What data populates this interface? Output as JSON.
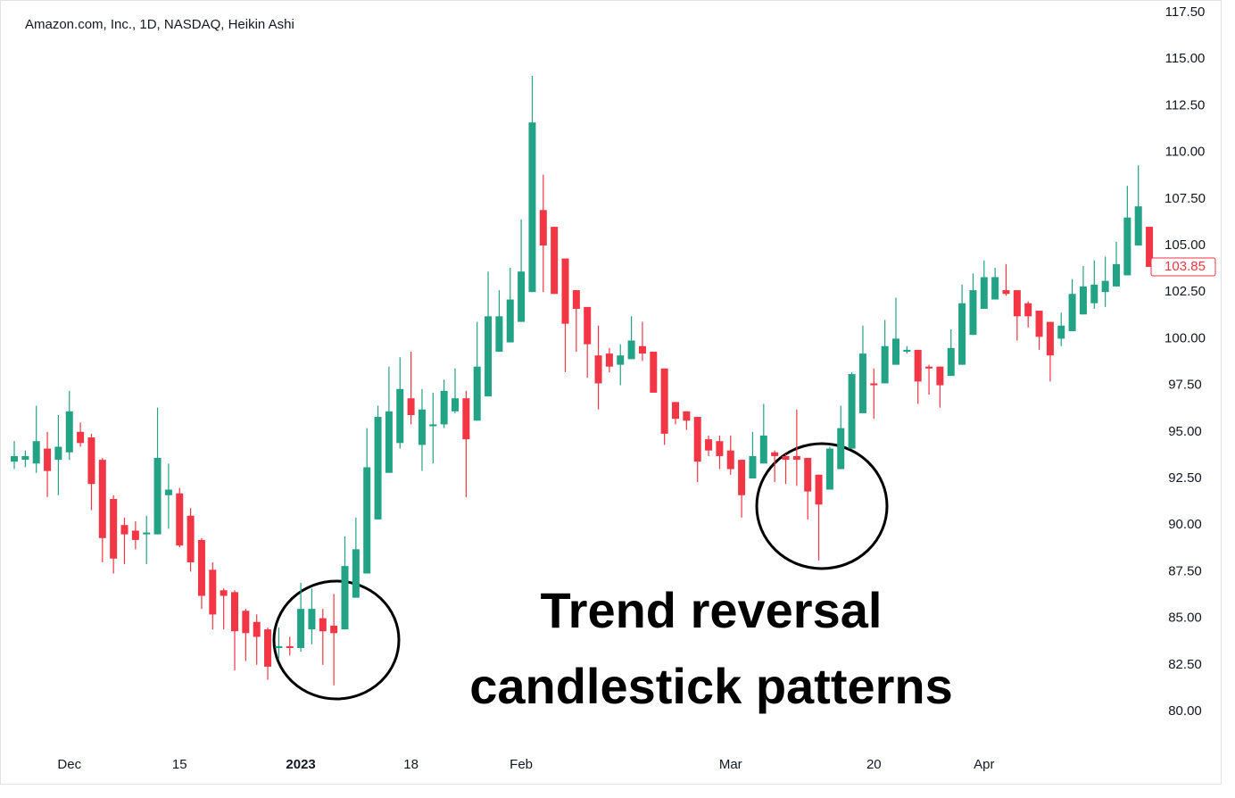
{
  "chart_data": {
    "type": "candlestick",
    "title": "Amazon.com, Inc., 1D, NASDAQ, Heikin Ashi",
    "annotations": [
      "Trend reversal",
      "candlestick patterns"
    ],
    "categories": [
      null,
      null,
      null,
      null,
      null,
      "Dec",
      null,
      null,
      null,
      null,
      null,
      null,
      null,
      null,
      null,
      "15",
      null,
      null,
      null,
      null,
      null,
      null,
      null,
      null,
      null,
      null,
      "2023",
      null,
      null,
      null,
      null,
      null,
      null,
      null,
      null,
      null,
      "18",
      null,
      null,
      null,
      null,
      null,
      null,
      null,
      null,
      null,
      "Feb",
      null,
      null,
      null,
      null,
      null,
      null,
      null,
      null,
      null,
      null,
      null,
      null,
      null,
      null,
      null,
      null,
      null,
      null,
      "Mar",
      null,
      null,
      null,
      null,
      null,
      null,
      null,
      null,
      null,
      null,
      null,
      null,
      "20",
      null,
      null,
      null,
      null,
      null,
      null,
      null,
      null,
      null,
      "Apr",
      null,
      null,
      null,
      null,
      null,
      null,
      null,
      null,
      null,
      null,
      null,
      null,
      null,
      null,
      null
    ],
    "open": [
      93.4,
      93.5,
      93.3,
      94.1,
      93.5,
      93.9,
      95.0,
      94.7,
      93.5,
      91.4,
      90.0,
      89.7,
      89.5,
      89.5,
      91.6,
      91.7,
      90.5,
      89.2,
      87.6,
      86.5,
      86.4,
      85.4,
      84.8,
      84.4,
      83.4,
      83.5,
      83.4,
      84.4,
      85.0,
      84.6,
      84.4,
      86.1,
      87.4,
      90.3,
      92.8,
      94.4,
      96.8,
      94.3,
      95.3,
      95.4,
      96.1,
      96.8,
      95.6,
      96.9,
      99.3,
      99.8,
      100.9,
      102.5,
      106.9,
      106.0,
      104.3,
      102.6,
      101.7,
      99.1,
      99.2,
      98.6,
      98.9,
      99.6,
      99.3,
      98.4,
      96.6,
      96.1,
      95.8,
      94.6,
      94.5,
      94.0,
      93.5,
      92.5,
      93.3,
      93.9,
      93.7,
      93.7,
      93.6,
      92.7,
      91.9,
      93.0,
      94.1,
      96.0,
      97.6,
      97.6,
      98.6,
      99.3,
      99.4,
      98.5,
      98.5,
      98.0,
      98.6,
      100.2,
      101.6,
      102.1,
      102.6,
      102.6,
      101.9,
      101.5,
      100.9,
      100.0,
      100.4,
      101.3,
      101.9,
      102.5,
      102.8,
      103.4,
      105.0,
      106.0
    ],
    "high": [
      94.5,
      94.0,
      96.4,
      95.0,
      95.9,
      97.2,
      95.5,
      94.9,
      93.6,
      91.6,
      90.4,
      90.2,
      90.5,
      96.3,
      93.3,
      92.0,
      90.9,
      89.3,
      88.0,
      86.6,
      86.5,
      85.5,
      85.2,
      84.5,
      84.5,
      84.0,
      86.9,
      86.6,
      85.5,
      86.3,
      89.4,
      90.4,
      95.2,
      96.4,
      98.5,
      99.0,
      99.3,
      97.3,
      97.1,
      97.8,
      98.4,
      97.2,
      100.9,
      103.6,
      102.6,
      103.8,
      106.4,
      114.1,
      108.8,
      106.0,
      104.3,
      102.6,
      101.7,
      100.7,
      99.5,
      99.7,
      101.2,
      100.9,
      99.3,
      98.4,
      96.6,
      96.1,
      95.8,
      94.8,
      94.8,
      94.8,
      93.5,
      95.0,
      96.5,
      94.0,
      93.8,
      96.2,
      93.6,
      92.7,
      94.2,
      96.4,
      98.2,
      100.7,
      98.4,
      101.0,
      102.2,
      99.6,
      99.4,
      98.6,
      98.5,
      100.5,
      102.9,
      103.5,
      104.2,
      103.8,
      104.0,
      102.6,
      102.0,
      101.5,
      100.9,
      101.4,
      103.2,
      103.9,
      104.2,
      104.4,
      105.2,
      108.2,
      109.3,
      106.0
    ],
    "low": [
      93.0,
      93.1,
      92.8,
      91.5,
      91.6,
      93.5,
      94.2,
      90.8,
      88.0,
      87.4,
      87.9,
      88.7,
      87.9,
      89.5,
      89.8,
      88.8,
      87.5,
      85.5,
      84.4,
      84.4,
      82.2,
      82.7,
      82.5,
      81.7,
      82.8,
      83.0,
      83.2,
      83.6,
      82.5,
      81.4,
      84.4,
      86.1,
      87.4,
      90.3,
      92.8,
      94.1,
      95.4,
      92.9,
      93.3,
      95.2,
      96.0,
      91.5,
      95.6,
      96.9,
      99.3,
      99.8,
      100.9,
      102.5,
      102.5,
      102.4,
      98.2,
      99.3,
      97.9,
      96.2,
      98.2,
      97.5,
      98.9,
      98.8,
      97.1,
      94.3,
      95.4,
      95.1,
      92.3,
      93.7,
      93.0,
      92.7,
      90.4,
      92.5,
      93.3,
      92.3,
      92.2,
      92.1,
      90.3,
      88.1,
      91.9,
      93.0,
      94.1,
      96.0,
      95.7,
      97.6,
      98.6,
      99.2,
      96.5,
      97.0,
      96.3,
      98.0,
      98.6,
      100.2,
      101.6,
      102.1,
      102.3,
      99.9,
      100.6,
      99.4,
      97.7,
      99.6,
      100.4,
      101.3,
      101.6,
      101.7,
      102.8,
      103.4,
      105.0,
      103.85
    ],
    "close": [
      93.7,
      93.7,
      94.5,
      92.9,
      94.2,
      96.1,
      94.4,
      92.2,
      89.3,
      88.2,
      89.5,
      89.2,
      89.6,
      93.6,
      91.9,
      88.9,
      88.0,
      86.2,
      85.2,
      86.2,
      84.3,
      84.2,
      84.0,
      82.4,
      83.5,
      83.4,
      85.5,
      85.5,
      84.3,
      84.2,
      87.8,
      88.7,
      93.1,
      95.8,
      96.1,
      97.3,
      95.9,
      96.2,
      95.4,
      97.2,
      96.8,
      94.6,
      98.5,
      101.2,
      101.2,
      102.1,
      103.6,
      111.6,
      105.0,
      102.4,
      100.8,
      101.6,
      99.7,
      97.6,
      98.5,
      99.1,
      99.9,
      99.2,
      97.1,
      94.9,
      95.7,
      95.6,
      93.4,
      94.0,
      93.7,
      93.0,
      91.6,
      93.7,
      94.8,
      93.7,
      93.5,
      93.5,
      91.8,
      91.1,
      94.1,
      95.2,
      98.1,
      99.2,
      97.5,
      99.6,
      100.0,
      99.4,
      97.7,
      98.4,
      97.5,
      99.5,
      101.9,
      102.6,
      103.3,
      103.3,
      102.4,
      101.2,
      101.2,
      100.1,
      99.1,
      100.7,
      102.4,
      102.8,
      102.9,
      103.1,
      104.0,
      106.5,
      107.1,
      103.85
    ],
    "up_color": "#22a386",
    "down_color": "#f23645",
    "ylim": [
      77.94,
      118.17
    ],
    "yticks": [
      {
        "value": 80,
        "label": "80.00"
      },
      {
        "value": 82.5,
        "label": "82.50"
      },
      {
        "value": 85,
        "label": "85.00"
      },
      {
        "value": 87.5,
        "label": "87.50"
      },
      {
        "value": 90,
        "label": "90.00"
      },
      {
        "value": 92.5,
        "label": "92.50"
      },
      {
        "value": 95,
        "label": "95.00"
      },
      {
        "value": 97.5,
        "label": "97.50"
      },
      {
        "value": 100,
        "label": "100.00"
      },
      {
        "value": 102.5,
        "label": "102.50"
      },
      {
        "value": 105,
        "label": "105.00"
      },
      {
        "value": 107.5,
        "label": "107.50"
      },
      {
        "value": 110,
        "label": "110.00"
      },
      {
        "value": 112.5,
        "label": "112.50"
      },
      {
        "value": 115,
        "label": "115.00"
      },
      {
        "value": 117.5,
        "label": "117.50"
      }
    ],
    "grid": false
  }
}
